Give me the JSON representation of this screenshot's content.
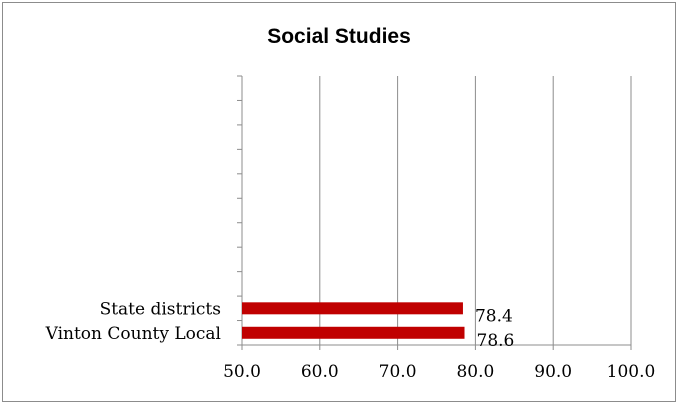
{
  "chart_data": {
    "type": "bar",
    "orientation": "horizontal",
    "title": "Social Studies",
    "categories": [
      "Vinton County Local",
      "State districts"
    ],
    "values": [
      78.6,
      78.4
    ],
    "value_labels": [
      "78.6",
      "78.4"
    ],
    "xlim": [
      50.0,
      100.0
    ],
    "xticks": [
      "50.0",
      "60.0",
      "70.0",
      "80.0",
      "90.0",
      "100.0"
    ],
    "xlabel": "",
    "ylabel": "",
    "grid": "vertical",
    "legend": "none",
    "bar_color": "#c00000"
  }
}
